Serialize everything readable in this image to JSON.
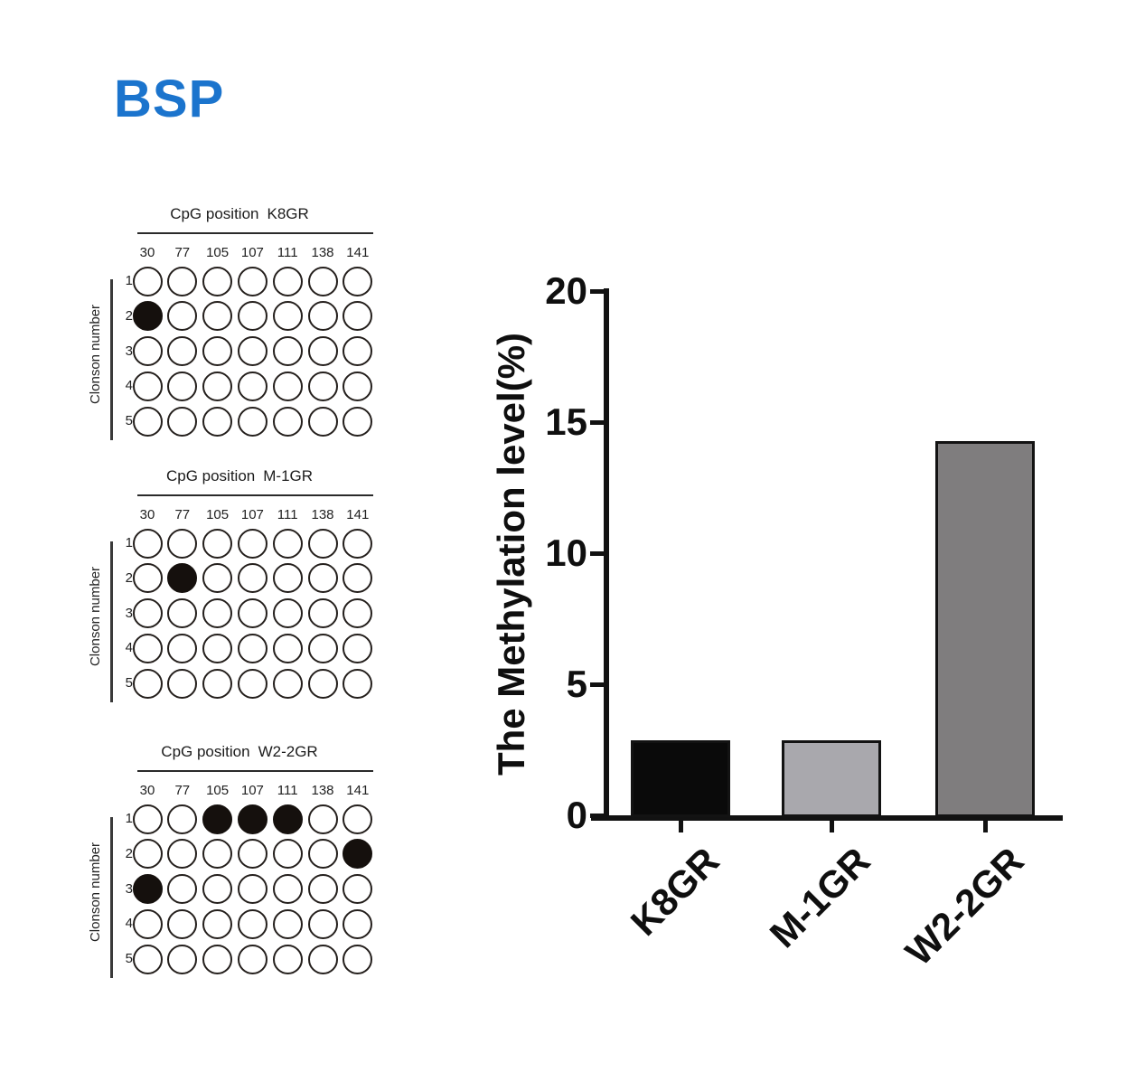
{
  "figure_title": "BSP",
  "colors": {
    "title_blue": "#1b74cd",
    "ink": "#141414"
  },
  "panels": [
    {
      "header": "CpG position",
      "name": "K8GR",
      "row_axis_label": "Clonson number",
      "columns": [
        "30",
        "77",
        "105",
        "107",
        "111",
        "138",
        "141"
      ],
      "row_numbers": [
        "1",
        "2",
        "3",
        "4",
        "5"
      ],
      "filled": [
        [
          0,
          0,
          0,
          0,
          0,
          0,
          0
        ],
        [
          1,
          0,
          0,
          0,
          0,
          0,
          0
        ],
        [
          0,
          0,
          0,
          0,
          0,
          0,
          0
        ],
        [
          0,
          0,
          0,
          0,
          0,
          0,
          0
        ],
        [
          0,
          0,
          0,
          0,
          0,
          0,
          0
        ]
      ]
    },
    {
      "header": "CpG position",
      "name": "M-1GR",
      "row_axis_label": "Clonson number",
      "columns": [
        "30",
        "77",
        "105",
        "107",
        "111",
        "138",
        "141"
      ],
      "row_numbers": [
        "1",
        "2",
        "3",
        "4",
        "5"
      ],
      "filled": [
        [
          0,
          0,
          0,
          0,
          0,
          0,
          0
        ],
        [
          0,
          1,
          0,
          0,
          0,
          0,
          0
        ],
        [
          0,
          0,
          0,
          0,
          0,
          0,
          0
        ],
        [
          0,
          0,
          0,
          0,
          0,
          0,
          0
        ],
        [
          0,
          0,
          0,
          0,
          0,
          0,
          0
        ]
      ]
    },
    {
      "header": "CpG position",
      "name": "W2-2GR",
      "row_axis_label": "Clonson number",
      "columns": [
        "30",
        "77",
        "105",
        "107",
        "111",
        "138",
        "141"
      ],
      "row_numbers": [
        "1",
        "2",
        "3",
        "4",
        "5"
      ],
      "filled": [
        [
          0,
          0,
          1,
          1,
          1,
          0,
          0
        ],
        [
          0,
          0,
          0,
          0,
          0,
          0,
          1
        ],
        [
          1,
          0,
          0,
          0,
          0,
          0,
          0
        ],
        [
          0,
          0,
          0,
          0,
          0,
          0,
          0
        ],
        [
          0,
          0,
          0,
          0,
          0,
          0,
          0
        ]
      ]
    }
  ],
  "chart_data": {
    "type": "bar",
    "title": "",
    "categories": [
      "K8GR",
      "M-1GR",
      "W2-2GR"
    ],
    "values": [
      2.86,
      2.86,
      14.29
    ],
    "xlabel": "",
    "ylabel": "The Methylation level(%)",
    "ylim": [
      0,
      20
    ],
    "yticks": [
      0,
      5,
      10,
      15,
      20
    ],
    "grid": false,
    "legend": false,
    "bar_fills": [
      "#0a0a0a",
      "#a9a8ad",
      "#7f7d7e"
    ],
    "bar_border": "#131313"
  }
}
